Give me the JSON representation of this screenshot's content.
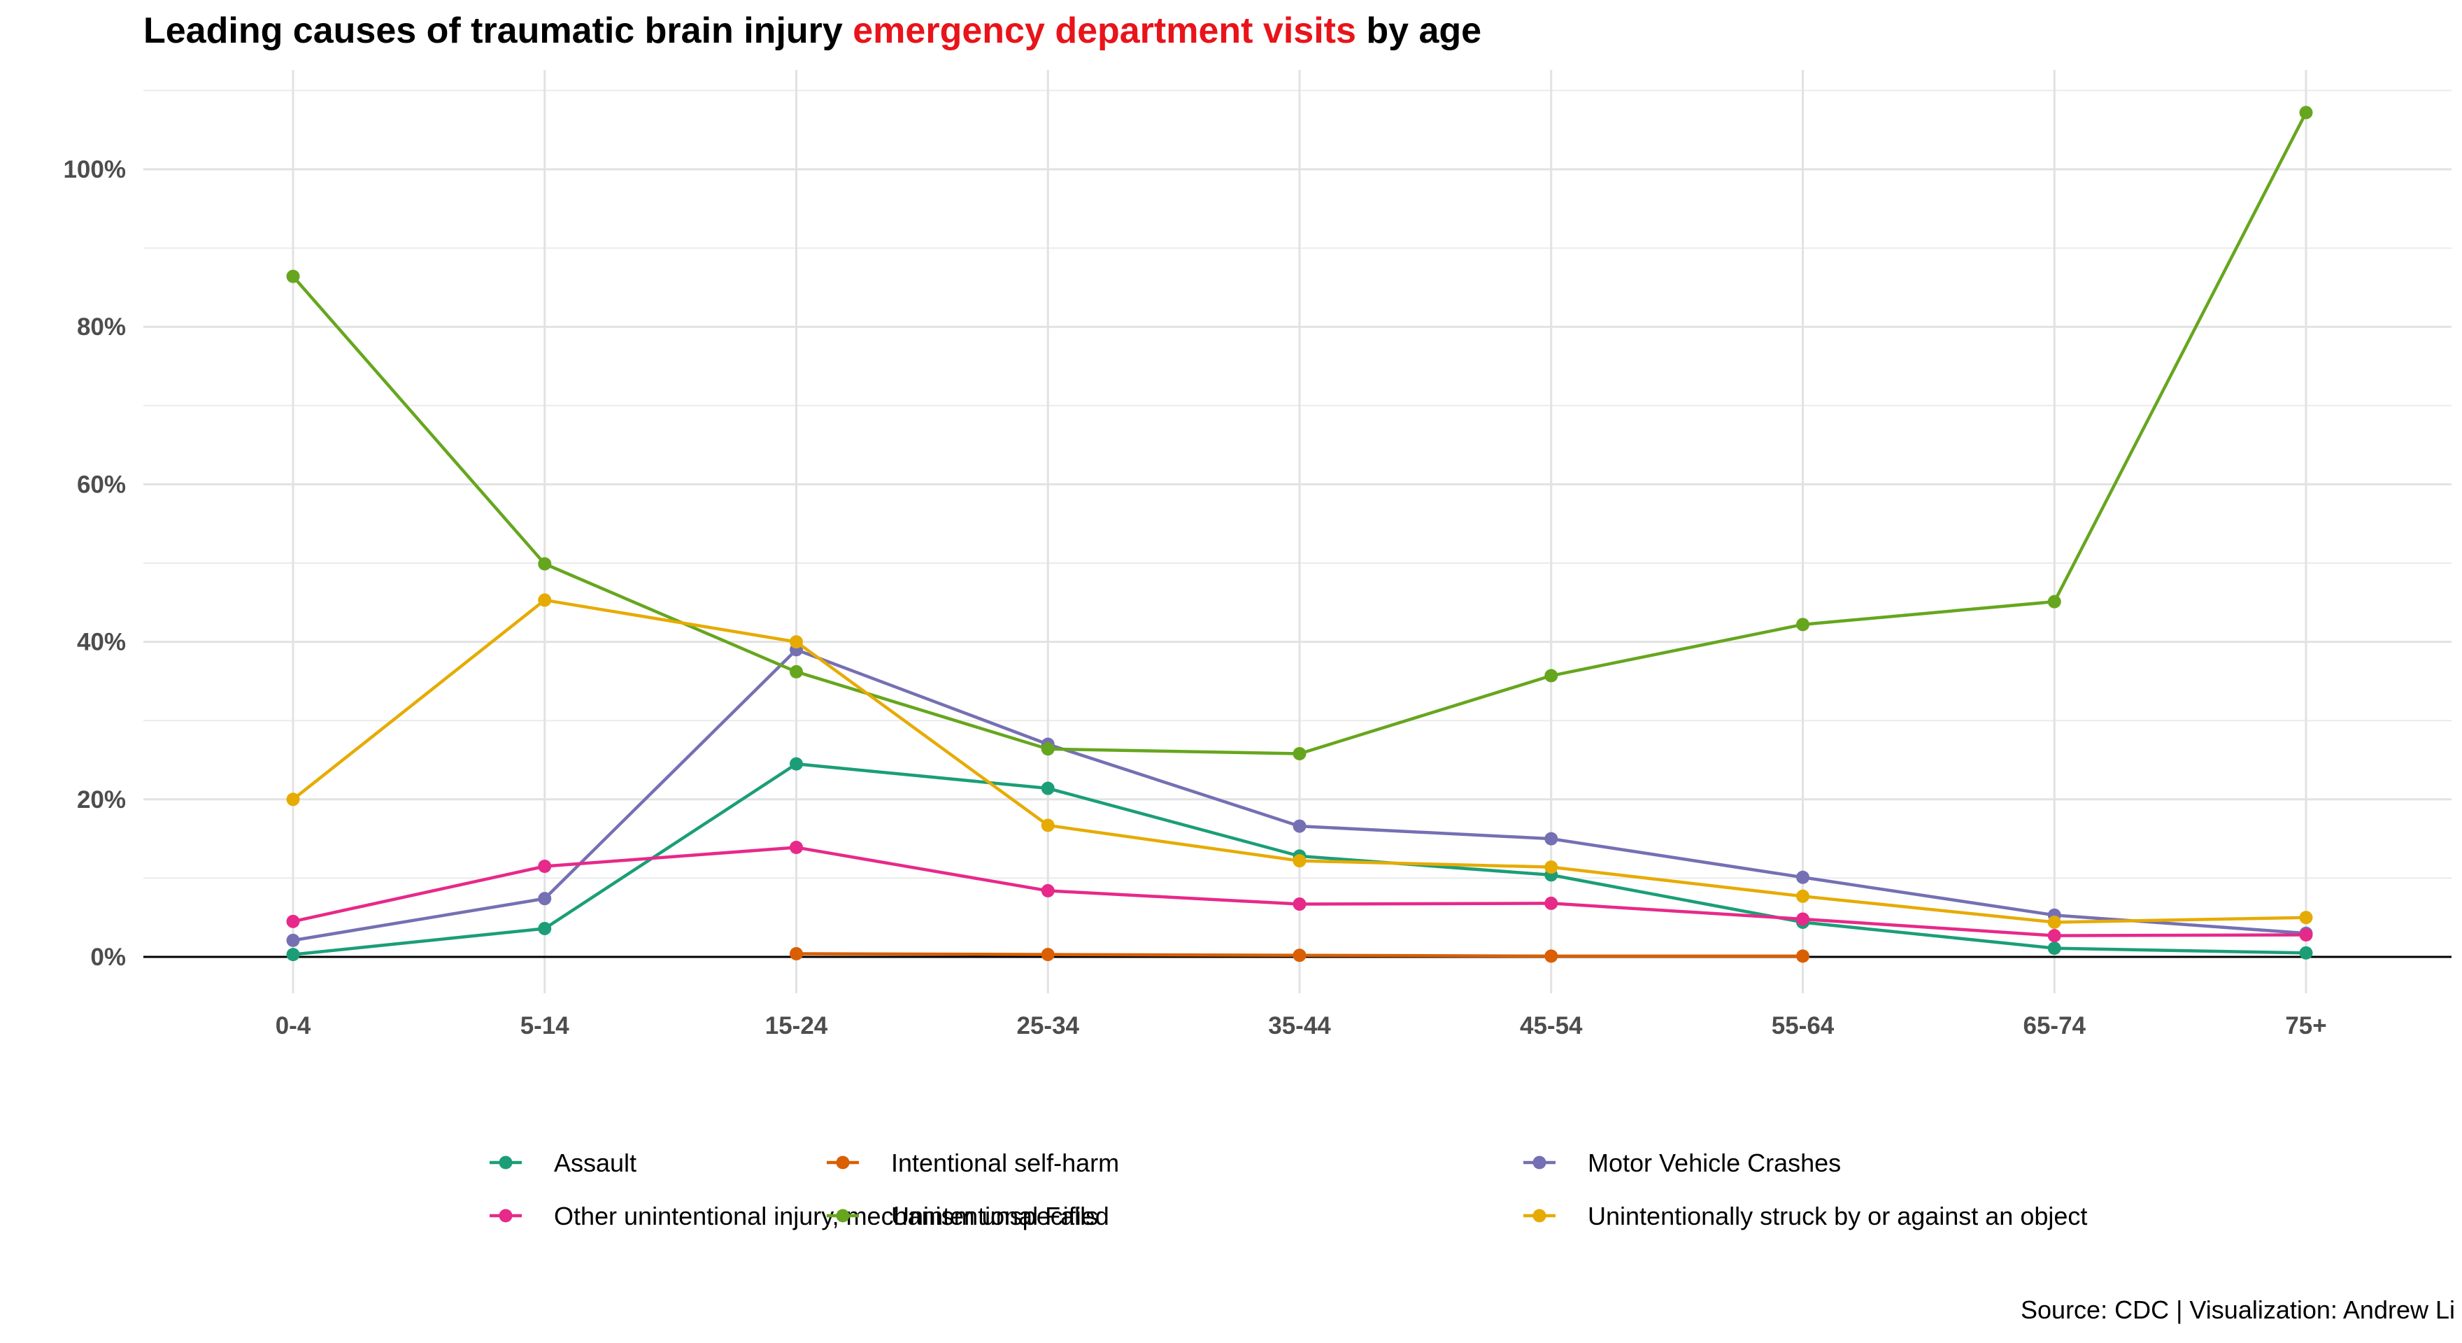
{
  "title": {
    "before": "Leading causes of traumatic brain injury ",
    "highlight": "emergency department visits",
    "after": " by age",
    "highlight_color": "#e8141a"
  },
  "caption": "Source: CDC | Visualization: Andrew Li",
  "chart_data": {
    "type": "line",
    "title": "Leading causes of traumatic brain injury emergency department visits by age",
    "xlabel": "",
    "ylabel": "",
    "categories": [
      "0-4",
      "5-14",
      "15-24",
      "25-34",
      "35-44",
      "45-54",
      "55-64",
      "65-74",
      "75+"
    ],
    "ylim": [
      -0.05,
      1.12
    ],
    "yticks": [
      0,
      0.2,
      0.4,
      0.6,
      0.8,
      1.0
    ],
    "ytick_labels": [
      "0%",
      "20%",
      "40%",
      "60%",
      "80%",
      "100%"
    ],
    "grid": true,
    "legend_position": "bottom",
    "series": [
      {
        "name": "Assault",
        "color": "#1b9e77",
        "values": [
          0.003,
          0.036,
          0.245,
          0.214,
          0.128,
          0.104,
          0.044,
          0.011,
          0.005
        ]
      },
      {
        "name": "Intentional self-harm",
        "color": "#d95f02",
        "values": [
          null,
          null,
          0.004,
          0.003,
          0.002,
          0.001,
          0.001,
          null,
          null
        ]
      },
      {
        "name": "Motor Vehicle Crashes",
        "color": "#7570b3",
        "values": [
          0.021,
          0.074,
          0.39,
          0.27,
          0.166,
          0.15,
          0.101,
          0.053,
          0.03
        ]
      },
      {
        "name": "Other unintentional injury, mechanism unspecified",
        "color": "#e7298a",
        "values": [
          0.045,
          0.115,
          0.139,
          0.084,
          0.067,
          0.068,
          0.048,
          0.027,
          0.028
        ]
      },
      {
        "name": "Unintentional Falls",
        "color": "#66a61e",
        "values": [
          0.864,
          0.499,
          0.362,
          0.264,
          0.258,
          0.357,
          0.422,
          0.451,
          1.072
        ]
      },
      {
        "name": "Unintentionally struck by or against an object",
        "color": "#e6ab02",
        "values": [
          0.2,
          0.453,
          0.4,
          0.167,
          0.122,
          0.114,
          0.077,
          0.044,
          0.05
        ]
      }
    ]
  }
}
